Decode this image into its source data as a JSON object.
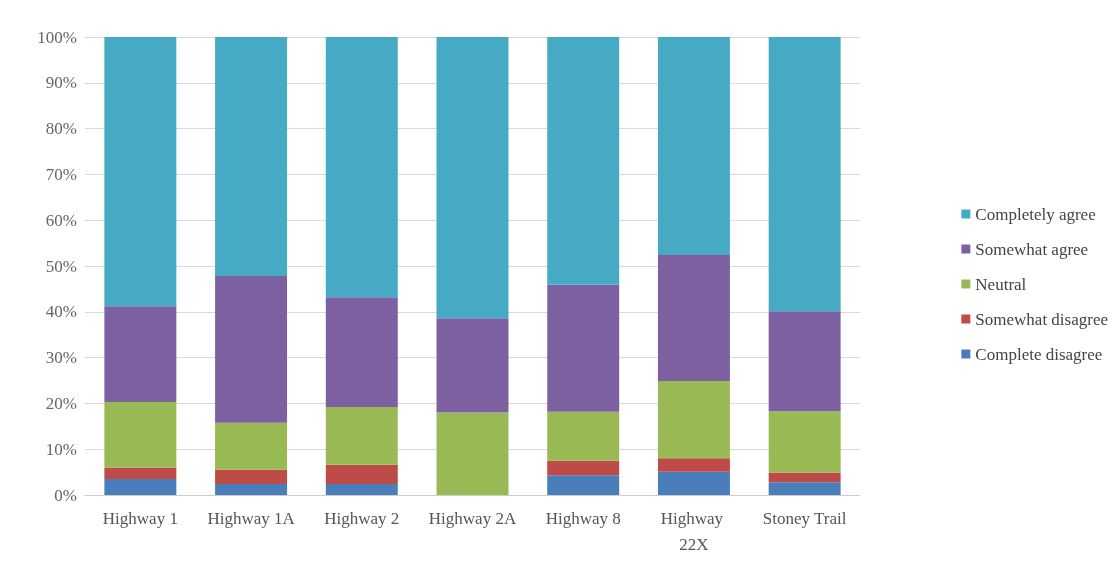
{
  "chart_data": {
    "type": "bar",
    "stacked": true,
    "categories": [
      "Highway 1",
      "Highway 1A",
      "Highway 2",
      "Highway 2A",
      "Highway 8",
      "Highway 22X",
      "Stoney Trail"
    ],
    "series": [
      {
        "name": "Complete disagree",
        "color": "#4a7ebb",
        "values": [
          3.5,
          2.4,
          2.4,
          0,
          4.3,
          5.1,
          2.8
        ]
      },
      {
        "name": "Somewhat disagree",
        "color": "#be4b48",
        "values": [
          2.5,
          3.1,
          4.2,
          0,
          3.2,
          2.9,
          2.1
        ]
      },
      {
        "name": "Neutral",
        "color": "#98b954",
        "values": [
          14.3,
          10.3,
          12.6,
          18.0,
          10.7,
          16.9,
          13.4
        ]
      },
      {
        "name": "Somewhat agree",
        "color": "#7d60a0",
        "values": [
          20.9,
          32.0,
          24.0,
          20.6,
          27.7,
          27.5,
          21.8
        ]
      },
      {
        "name": "Completely agree",
        "color": "#46aac5",
        "values": [
          58.8,
          52.2,
          56.8,
          61.4,
          54.1,
          47.6,
          59.9
        ]
      }
    ],
    "ylim": [
      0,
      100
    ],
    "yticks": [
      {
        "value": 0,
        "label": "0%"
      },
      {
        "value": 10,
        "label": "10%"
      },
      {
        "value": 20,
        "label": "20%"
      },
      {
        "value": 30,
        "label": "30%"
      },
      {
        "value": 40,
        "label": "40%"
      },
      {
        "value": 50,
        "label": "50%"
      },
      {
        "value": 60,
        "label": "60%"
      },
      {
        "value": 70,
        "label": "70%"
      },
      {
        "value": 80,
        "label": "80%"
      },
      {
        "value": 90,
        "label": "90%"
      },
      {
        "value": 100,
        "label": "100%"
      }
    ],
    "grid": "y",
    "legend": "right"
  }
}
